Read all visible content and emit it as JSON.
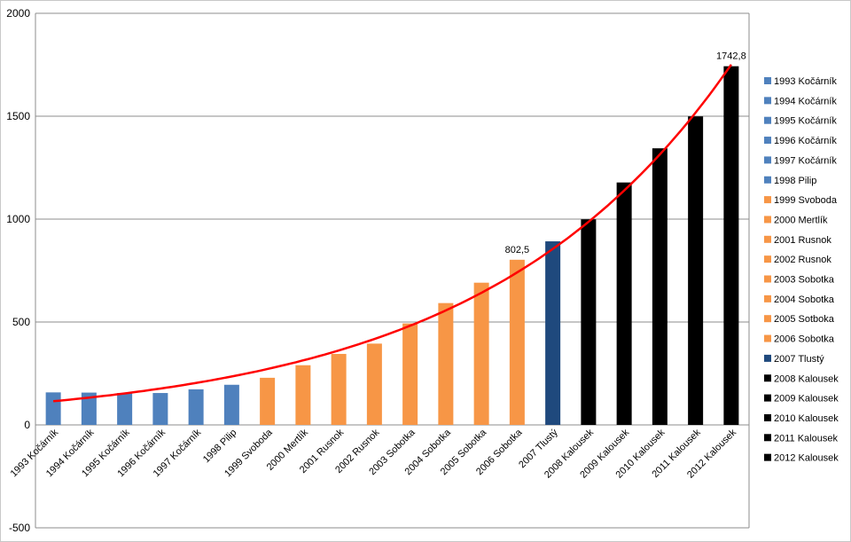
{
  "chart_data": {
    "type": "bar",
    "categories": [
      "1993 Kočárník",
      "1994 Kočárník",
      "1995 Kočárník",
      "1996 Kočárník",
      "1997 Kočárník",
      "1998 Pilip",
      "1999 Svoboda",
      "2000 Mertlík",
      "2001 Rusnok",
      "2002 Rusnok",
      "2003 Sobotka",
      "2004 Sobotka",
      "2005 Sobotka",
      "2006 Sobotka",
      "2007 Tlustý",
      "2008 Kalousek",
      "2009 Kalousek",
      "2010 Kalousek",
      "2011 Kalousek",
      "2012 Kalousek"
    ],
    "values": [
      158,
      157,
      155,
      155,
      173,
      195,
      229,
      290,
      345,
      395,
      493,
      592,
      691,
      802.5,
      892,
      999,
      1178,
      1344,
      1499,
      1742.8
    ],
    "bar_colors": [
      "#4f81bd",
      "#4f81bd",
      "#4f81bd",
      "#4f81bd",
      "#4f81bd",
      "#4f81bd",
      "#f79646",
      "#f79646",
      "#f79646",
      "#f79646",
      "#f79646",
      "#f79646",
      "#f79646",
      "#f79646",
      "#1f497d",
      "#000000",
      "#000000",
      "#000000",
      "#000000",
      "#000000"
    ],
    "legend": [
      "1993 Kočárník",
      "1994 Kočárník",
      "1995 Kočárník",
      "1996 Kočárník",
      "1997 Kočárník",
      "1998 Pilip",
      "1999 Svoboda",
      "2000 Mertlík",
      "2001 Rusnok",
      "2002 Rusnok",
      "2003 Sobotka",
      "2004 Sobotka",
      "2005 Sotboka",
      "2006 Sobotka",
      "2007 Tlustý",
      "2008 Kalousek",
      "2009 Kalousek",
      "2010 Kalousek",
      "2011 Kalousek",
      "2012 Kalousek"
    ],
    "legend_position": "right",
    "data_labels": [
      {
        "index": 13,
        "text": "802,5"
      },
      {
        "index": 19,
        "text": "1742,8"
      }
    ],
    "trendline": {
      "type": "exponential",
      "color": "#ff0000"
    },
    "ylim": [
      -500,
      2000
    ],
    "yticks": [
      "2000",
      "1500",
      "1000",
      "500",
      "0",
      "-500"
    ],
    "grid": true
  }
}
